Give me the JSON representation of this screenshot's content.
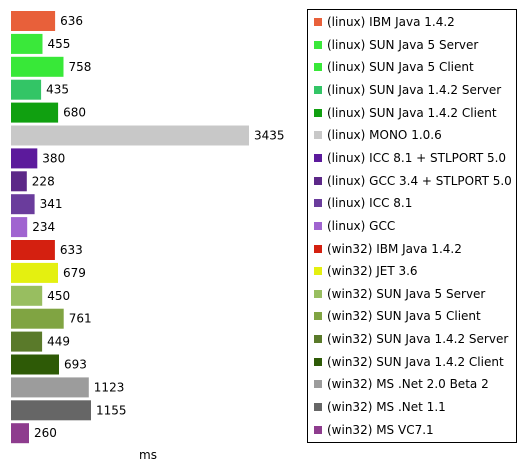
{
  "chart_data": {
    "type": "bar",
    "orientation": "horizontal",
    "xlabel": "ms",
    "legend_position": "right",
    "grid": false,
    "categories": [
      "(linux) IBM Java 1.4.2",
      "(linux) SUN Java 5 Server",
      "(linux) SUN Java 5 Client",
      "(linux) SUN Java 1.4.2 Server",
      "(linux) SUN Java 1.4.2 Client",
      "(linux) MONO 1.0.6",
      "(linux) ICC 8.1 + STLPORT 5.0",
      "(linux) GCC 3.4 + STLPORT 5.0",
      "(linux) ICC 8.1",
      "(linux) GCC",
      "(win32) IBM Java 1.4.2",
      "(win32) JET 3.6",
      "(win32) SUN Java 5 Server",
      "(win32) SUN Java 5 Client",
      "(win32) SUN Java 1.4.2 Server",
      "(win32) SUN Java 1.4.2 Client",
      "(win32) MS .Net 2.0 Beta 2",
      "(win32) MS .Net 1.1",
      "(win32) MS VC7.1"
    ],
    "values": [
      636,
      455,
      758,
      435,
      680,
      3435,
      380,
      228,
      341,
      234,
      633,
      679,
      450,
      761,
      449,
      693,
      1123,
      1155,
      260
    ],
    "colors": [
      "#e8603a",
      "#3ae83a",
      "#38e838",
      "#33c566",
      "#10a010",
      "#c8c8c8",
      "#5c1a9c",
      "#5c2888",
      "#6a3c9c",
      "#a064d0",
      "#d42010",
      "#e4f010",
      "#98be60",
      "#80a442",
      "#5a7a2a",
      "#2e5a06",
      "#9c9c9c",
      "#666666",
      "#8e3c8e"
    ]
  }
}
